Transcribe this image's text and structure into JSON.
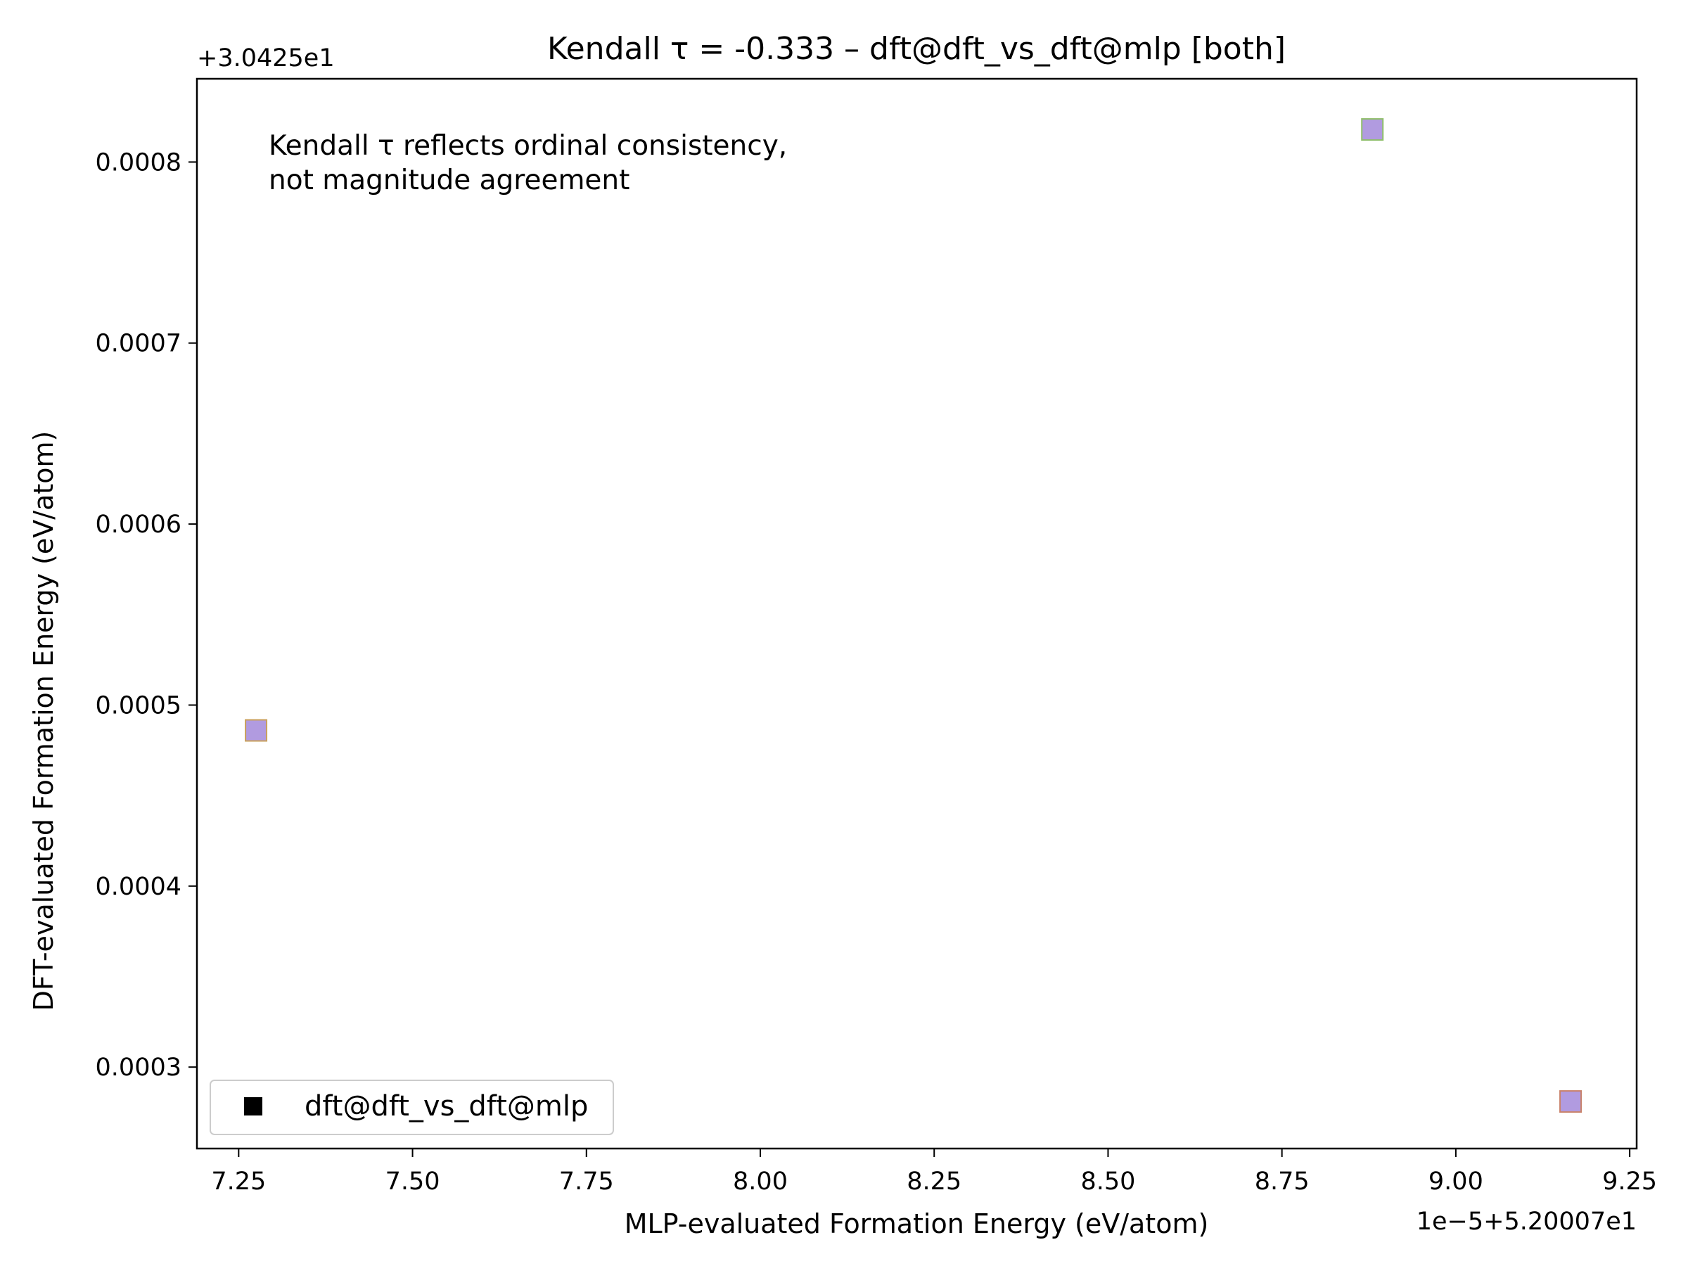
{
  "chart_data": {
    "type": "scatter",
    "title": "Kendall τ = -0.333 – dft@dft_vs_dft@mlp [both]",
    "xlabel": "MLP-evaluated Formation Energy (eV/atom)",
    "ylabel": "DFT-evaluated Formation Energy (eV/atom)",
    "x_offset_label": "1e−5+5.20007e1",
    "y_offset_label": "+3.0425e1",
    "x_ticks": [
      7.25,
      7.5,
      7.75,
      8.0,
      8.25,
      8.5,
      8.75,
      9.0,
      9.25
    ],
    "x_tick_labels": [
      "7.25",
      "7.50",
      "7.75",
      "8.00",
      "8.25",
      "8.50",
      "8.75",
      "9.00",
      "9.25"
    ],
    "y_ticks": [
      0.0003,
      0.0004,
      0.0005,
      0.0006,
      0.0007,
      0.0008
    ],
    "y_tick_labels": [
      "0.0003",
      "0.0004",
      "0.0005",
      "0.0006",
      "0.0007",
      "0.0008"
    ],
    "xlim": [
      7.19,
      9.26
    ],
    "ylim": [
      0.000255,
      0.000846
    ],
    "grid": false,
    "legend_placement": "lower-left",
    "annotation": [
      "Kendall τ reflects ordinal consistency,",
      "not magnitude agreement"
    ],
    "series": [
      {
        "name": "dft@dft_vs_dft@mlp",
        "marker": "square",
        "color": "#b19be0",
        "edge_colors": [
          "#c9a05c",
          "#8fbf6a",
          "#c9826a"
        ],
        "legend_marker_color": "#000000",
        "points": [
          {
            "x": 7.275,
            "y": 0.000486
          },
          {
            "x": 8.88,
            "y": 0.000818
          },
          {
            "x": 9.165,
            "y": 0.000281
          }
        ]
      }
    ]
  }
}
